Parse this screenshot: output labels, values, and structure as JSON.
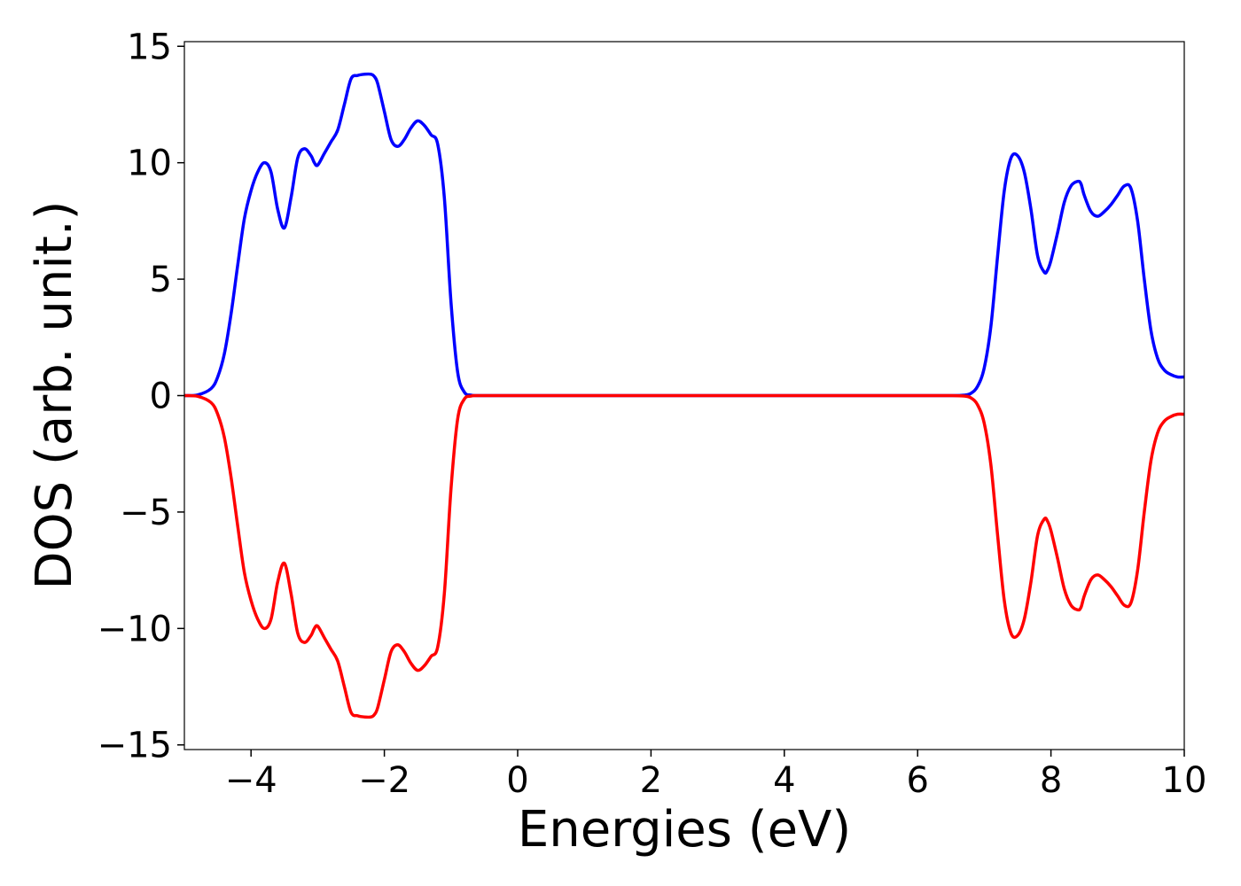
{
  "chart_data": {
    "type": "line",
    "title": "",
    "xlabel": "Energies (eV)",
    "ylabel": "DOS (arb. unit.)",
    "xlim": [
      -5,
      10
    ],
    "ylim": [
      -15.2,
      15.2
    ],
    "grid": false,
    "legend": "none",
    "x_ticks": [
      -4,
      -2,
      0,
      2,
      4,
      6,
      8,
      10
    ],
    "x_tick_labels": [
      "−4",
      "−2",
      "0",
      "2",
      "4",
      "6",
      "8",
      "10"
    ],
    "y_ticks": [
      -15,
      -10,
      -5,
      0,
      5,
      10,
      15
    ],
    "y_tick_labels": [
      "−15",
      "−10",
      "−5",
      "0",
      "5",
      "10",
      "15"
    ],
    "series": [
      {
        "color": "#0000ff",
        "x": [
          -5.0,
          -4.8,
          -4.6,
          -4.5,
          -4.4,
          -4.3,
          -4.2,
          -4.1,
          -4.0,
          -3.9,
          -3.8,
          -3.7,
          -3.6,
          -3.5,
          -3.4,
          -3.3,
          -3.2,
          -3.1,
          -3.05,
          -3.0,
          -2.9,
          -2.8,
          -2.7,
          -2.6,
          -2.5,
          -2.4,
          -2.3,
          -2.2,
          -2.15,
          -2.1,
          -2.0,
          -1.9,
          -1.8,
          -1.7,
          -1.6,
          -1.5,
          -1.4,
          -1.3,
          -1.2,
          -1.1,
          -1.0,
          -0.9,
          -0.8,
          -0.7,
          -0.6,
          -0.5,
          0.0,
          2.0,
          4.0,
          6.0,
          6.5,
          6.7,
          6.8,
          6.9,
          7.0,
          7.1,
          7.2,
          7.3,
          7.4,
          7.5,
          7.6,
          7.7,
          7.8,
          7.9,
          7.95,
          8.0,
          8.1,
          8.2,
          8.3,
          8.4,
          8.45,
          8.5,
          8.6,
          8.7,
          8.8,
          8.9,
          9.0,
          9.1,
          9.2,
          9.3,
          9.4,
          9.5,
          9.6,
          9.7,
          9.8,
          9.9,
          10.0
        ],
        "y": [
          0.0,
          0.03,
          0.3,
          0.8,
          1.8,
          3.5,
          5.6,
          7.6,
          8.8,
          9.6,
          10.0,
          9.6,
          8.0,
          7.2,
          8.5,
          10.2,
          10.6,
          10.3,
          10.0,
          9.9,
          10.4,
          10.9,
          11.4,
          12.5,
          13.6,
          13.75,
          13.8,
          13.8,
          13.7,
          13.4,
          12.2,
          11.0,
          10.7,
          11.0,
          11.5,
          11.8,
          11.6,
          11.2,
          10.8,
          8.5,
          4.0,
          1.0,
          0.15,
          0.02,
          0.0,
          0.0,
          0.0,
          0.0,
          0.0,
          0.0,
          0.0,
          0.02,
          0.1,
          0.4,
          1.2,
          3.0,
          6.0,
          8.8,
          10.2,
          10.3,
          9.6,
          8.0,
          6.0,
          5.3,
          5.4,
          5.8,
          7.0,
          8.3,
          9.0,
          9.2,
          9.1,
          8.6,
          7.9,
          7.7,
          7.9,
          8.2,
          8.6,
          9.0,
          8.9,
          7.5,
          5.0,
          2.8,
          1.6,
          1.1,
          0.9,
          0.8,
          0.8
        ]
      },
      {
        "color": "#ff0000",
        "x": [
          -5.0,
          -4.8,
          -4.6,
          -4.5,
          -4.4,
          -4.3,
          -4.2,
          -4.1,
          -4.0,
          -3.9,
          -3.8,
          -3.7,
          -3.6,
          -3.5,
          -3.4,
          -3.3,
          -3.2,
          -3.1,
          -3.05,
          -3.0,
          -2.9,
          -2.8,
          -2.7,
          -2.6,
          -2.5,
          -2.4,
          -2.3,
          -2.2,
          -2.15,
          -2.1,
          -2.0,
          -1.9,
          -1.8,
          -1.7,
          -1.6,
          -1.5,
          -1.4,
          -1.3,
          -1.2,
          -1.1,
          -1.0,
          -0.9,
          -0.8,
          -0.7,
          -0.6,
          -0.5,
          0.0,
          2.0,
          4.0,
          6.0,
          6.5,
          6.7,
          6.8,
          6.9,
          7.0,
          7.1,
          7.2,
          7.3,
          7.4,
          7.5,
          7.6,
          7.7,
          7.8,
          7.9,
          7.95,
          8.0,
          8.1,
          8.2,
          8.3,
          8.4,
          8.45,
          8.5,
          8.6,
          8.7,
          8.8,
          8.9,
          9.0,
          9.1,
          9.2,
          9.3,
          9.4,
          9.5,
          9.6,
          9.7,
          9.8,
          9.9,
          10.0
        ],
        "y": [
          0.0,
          -0.03,
          -0.3,
          -0.8,
          -1.8,
          -3.5,
          -5.6,
          -7.6,
          -8.8,
          -9.6,
          -10.0,
          -9.6,
          -8.0,
          -7.2,
          -8.5,
          -10.2,
          -10.6,
          -10.3,
          -10.0,
          -9.9,
          -10.4,
          -10.9,
          -11.4,
          -12.5,
          -13.6,
          -13.75,
          -13.8,
          -13.8,
          -13.7,
          -13.4,
          -12.2,
          -11.0,
          -10.7,
          -11.0,
          -11.5,
          -11.8,
          -11.6,
          -11.2,
          -10.8,
          -8.5,
          -4.0,
          -1.0,
          -0.15,
          -0.02,
          0.0,
          0.0,
          0.0,
          0.0,
          0.0,
          0.0,
          0.0,
          -0.02,
          -0.1,
          -0.4,
          -1.2,
          -3.0,
          -6.0,
          -8.8,
          -10.2,
          -10.3,
          -9.6,
          -8.0,
          -6.0,
          -5.3,
          -5.4,
          -5.8,
          -7.0,
          -8.3,
          -9.0,
          -9.2,
          -9.1,
          -8.6,
          -7.9,
          -7.7,
          -7.9,
          -8.2,
          -8.6,
          -9.0,
          -8.9,
          -7.5,
          -5.0,
          -2.8,
          -1.6,
          -1.1,
          -0.9,
          -0.8,
          -0.8
        ]
      }
    ]
  }
}
